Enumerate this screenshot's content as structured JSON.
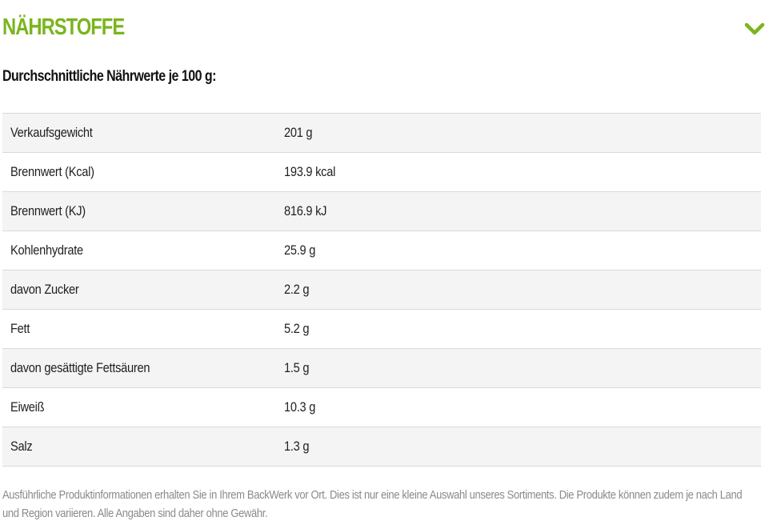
{
  "section": {
    "title": "NÄHRSTOFFE",
    "toggle_icon": "chevron-down-icon",
    "accent_color": "#7ab51d"
  },
  "subheading": "Durchschnittliche Nährwerte je 100 g:",
  "nutrients": [
    {
      "name": "Verkaufsgewicht",
      "value": "201 g"
    },
    {
      "name": "Brennwert (Kcal)",
      "value": "193.9 kcal"
    },
    {
      "name": "Brennwert (KJ)",
      "value": "816.9 kJ"
    },
    {
      "name": "Kohlenhydrate",
      "value": "25.9 g"
    },
    {
      "name": "davon Zucker",
      "value": "2.2 g"
    },
    {
      "name": "Fett",
      "value": "5.2 g"
    },
    {
      "name": "davon gesättigte Fettsäuren",
      "value": "1.5 g"
    },
    {
      "name": "Eiweiß",
      "value": "10.3 g"
    },
    {
      "name": "Salz",
      "value": "1.3 g"
    }
  ],
  "disclaimer": "Ausführliche Produktinformationen erhalten Sie in Ihrem BackWerk vor Ort. Dies ist nur eine kleine Auswahl unseres Sortiments. Die Produkte können zudem je nach Land und Region variieren. Alle Angaben sind daher ohne Gewähr."
}
